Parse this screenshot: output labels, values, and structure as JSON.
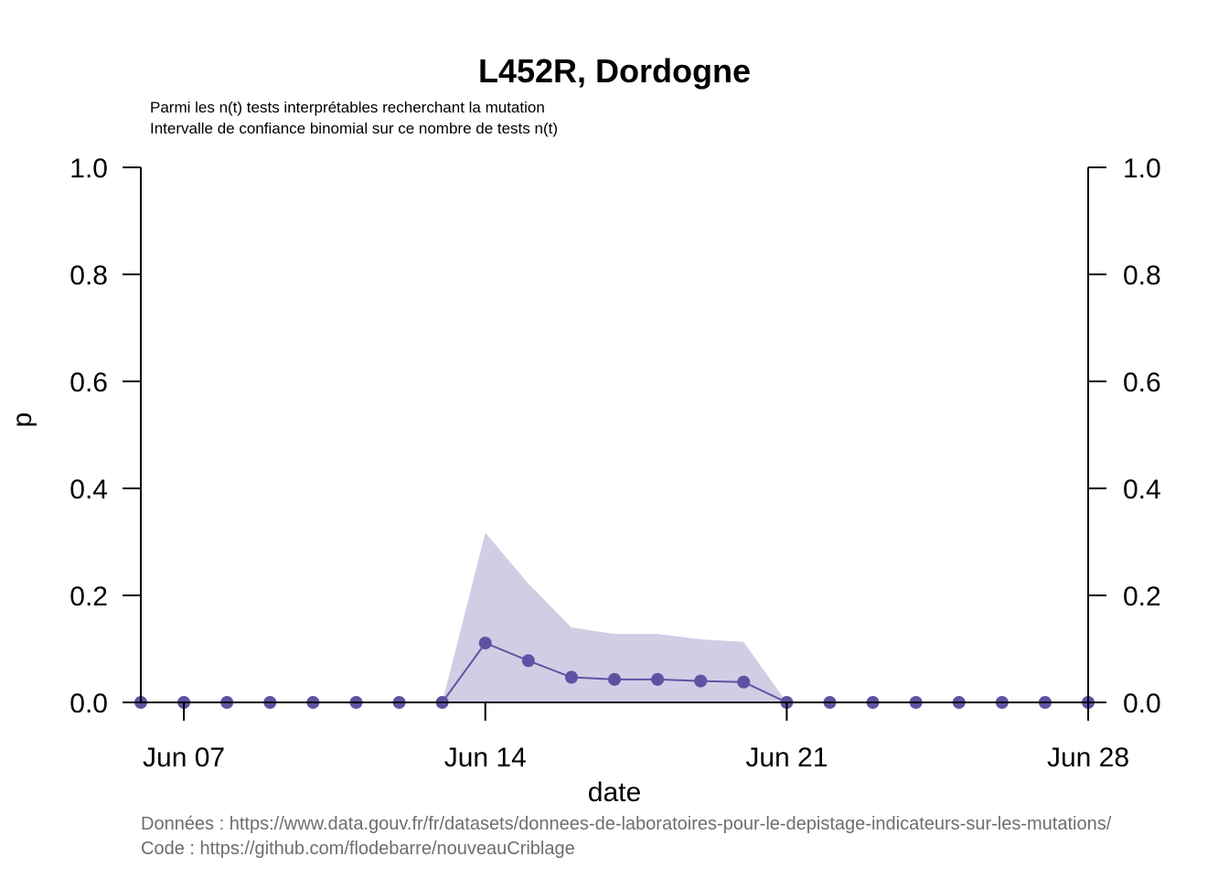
{
  "chart_data": {
    "type": "line",
    "title": "L452R, Dordogne",
    "subtitle_lines": [
      "Parmi les n(t) tests interprétables recherchant la mutation",
      "Intervalle de confiance binomial sur ce nombre de tests n(t)"
    ],
    "xlabel": "date",
    "ylabel": "p",
    "x_dates": [
      "2021-06-06",
      "2021-06-07",
      "2021-06-08",
      "2021-06-09",
      "2021-06-10",
      "2021-06-11",
      "2021-06-12",
      "2021-06-13",
      "2021-06-14",
      "2021-06-15",
      "2021-06-16",
      "2021-06-17",
      "2021-06-18",
      "2021-06-19",
      "2021-06-20",
      "2021-06-21",
      "2021-06-22",
      "2021-06-23",
      "2021-06-24",
      "2021-06-25",
      "2021-06-26",
      "2021-06-27",
      "2021-06-28"
    ],
    "values": [
      0,
      0,
      0,
      0,
      0,
      0,
      0,
      0,
      0.111,
      0.078,
      0.047,
      0.043,
      0.043,
      0.04,
      0.038,
      0,
      0,
      0,
      0,
      0,
      0,
      0,
      0
    ],
    "ci_lower": [
      0,
      0,
      0,
      0,
      0,
      0,
      0,
      0,
      0,
      0,
      0,
      0,
      0,
      0,
      0,
      0,
      0,
      0,
      0,
      0,
      0,
      0,
      0
    ],
    "ci_upper": [
      null,
      null,
      null,
      null,
      null,
      null,
      null,
      0,
      0.317,
      0.222,
      0.14,
      0.128,
      0.128,
      0.118,
      0.113,
      0,
      null,
      null,
      null,
      null,
      null,
      null,
      null
    ],
    "x_ticks": [
      {
        "date": "2021-06-07",
        "label": "Jun 07"
      },
      {
        "date": "2021-06-14",
        "label": "Jun 14"
      },
      {
        "date": "2021-06-21",
        "label": "Jun 21"
      },
      {
        "date": "2021-06-28",
        "label": "Jun 28"
      }
    ],
    "y_ticks": [
      {
        "value": 0.0,
        "label": "0.0"
      },
      {
        "value": 0.2,
        "label": "0.2"
      },
      {
        "value": 0.4,
        "label": "0.4"
      },
      {
        "value": 0.6,
        "label": "0.6"
      },
      {
        "value": 0.8,
        "label": "0.8"
      },
      {
        "value": 1.0,
        "label": "1.0"
      }
    ],
    "ylim": [
      0,
      1
    ],
    "xlim": [
      "2021-06-06",
      "2021-06-28"
    ],
    "grid": false,
    "secondary_y_axis": true,
    "colors": {
      "line": "#5e53a3",
      "point": "#5e53a3",
      "ribbon": "#d0cee5"
    }
  },
  "source": {
    "data_line": "Données : https://www.data.gouv.fr/fr/datasets/donnees-de-laboratoires-pour-le-depistage-indicateurs-sur-les-mutations/",
    "code_line": "Code : https://github.com/flodebarre/nouveauCriblage"
  }
}
